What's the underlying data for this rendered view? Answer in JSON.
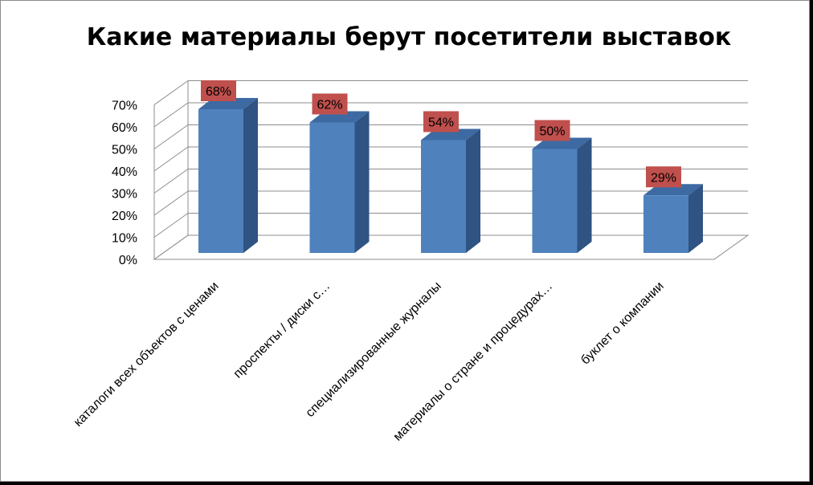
{
  "chart_data": {
    "type": "bar",
    "title": "Какие материалы  берут посетители выставок",
    "categories": [
      "каталоги всех объектов с ценами",
      "проспекты / диски с…",
      "специализированные журналы",
      "материалы о стране и процедурах…",
      "буклет о компании"
    ],
    "values": [
      68,
      62,
      54,
      50,
      29
    ],
    "data_labels": [
      "68%",
      "62%",
      "54%",
      "50%",
      "29%"
    ],
    "y_ticks": [
      "0%",
      "10%",
      "20%",
      "30%",
      "40%",
      "50%",
      "60%",
      "70%"
    ],
    "ylim": [
      0,
      70
    ],
    "grid": true,
    "legend": "none",
    "colors": {
      "bar_front": "#4f81bd",
      "bar_side": "#2f5382",
      "bar_top": "#3d6aa3",
      "label_bg": "#c0504d",
      "grid": "#8c8c8c"
    }
  }
}
